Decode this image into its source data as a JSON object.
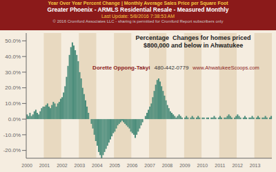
{
  "chart_data": {
    "type": "bar",
    "title": "Greater Phoenix - ARMLS Residential Resale - Measured Monthly",
    "subtitle": "Year Over Year Percent Change | Monthly Average Sales Price per Square Foot",
    "annotations": [
      "Last Update: 5/8/2016 7:38:53 AM",
      "© 2016 Cromford Associates LLC - sharing is permitted for Cromford Report subscribers only",
      "Percentage  Changes for homes priced",
      "$800,000 and below in Ahwatukee",
      "Dorette Oppong-Takyi",
      "480-442-0779",
      "www.AhwatukeeScoops.com"
    ],
    "categories": [
      "2000",
      null,
      null,
      null,
      null,
      null,
      null,
      null,
      null,
      null,
      null,
      null,
      "2001",
      null,
      null,
      null,
      null,
      null,
      null,
      null,
      null,
      null,
      null,
      null,
      "2002",
      null,
      null,
      null,
      null,
      null,
      null,
      null,
      null,
      null,
      null,
      null,
      "2003",
      null,
      null,
      null,
      null,
      null,
      null,
      null,
      null,
      null,
      null,
      null,
      "2004",
      null,
      null,
      null,
      null,
      null,
      null,
      null,
      null,
      null,
      null,
      null,
      "2005",
      null,
      null,
      null,
      null,
      null,
      null,
      null,
      null,
      null,
      null,
      null,
      "2006",
      null,
      null,
      null,
      null,
      null,
      null,
      null,
      null,
      null,
      null,
      null,
      "2007",
      null,
      null,
      null,
      null,
      null,
      null,
      null,
      null,
      null,
      null,
      null,
      "2008",
      null,
      null,
      null,
      null,
      null,
      null,
      null,
      null,
      null,
      null,
      null,
      "2009",
      null,
      null,
      null,
      null,
      null,
      null,
      null,
      null,
      null,
      null,
      null,
      "2010",
      null,
      null,
      null,
      null,
      null,
      null,
      null,
      null,
      null,
      null,
      null,
      "2011",
      null,
      null,
      null,
      null,
      null,
      null,
      null,
      null,
      null,
      null,
      null,
      "2012",
      null,
      null,
      null,
      null,
      null,
      null,
      null,
      null,
      null,
      null,
      null,
      "2013",
      null,
      null,
      null,
      null,
      null,
      null,
      null,
      null,
      null,
      null,
      null
    ],
    "values": [
      3,
      2,
      4,
      2,
      3,
      5,
      6,
      4,
      3,
      5,
      7,
      8,
      8,
      9,
      10,
      8,
      7,
      9,
      11,
      10,
      8,
      10,
      11,
      13,
      14,
      17,
      21,
      27,
      34,
      41,
      46,
      49,
      47,
      44,
      41,
      37,
      30,
      26,
      20,
      16,
      12,
      8,
      4,
      0,
      -3,
      -6,
      -10,
      -14,
      -17,
      -21,
      -23,
      -25,
      -23,
      -21,
      -19,
      -17,
      -15,
      -13,
      -11,
      -9,
      -8,
      -6,
      -4,
      -3,
      -2,
      -1,
      -2,
      -3,
      -4,
      -5,
      -6,
      -8,
      -9,
      -10,
      -12,
      -10,
      -8,
      -6,
      -4,
      -2,
      0,
      2,
      4,
      6,
      8,
      10,
      14,
      18,
      22,
      25,
      26,
      24,
      21,
      18,
      15,
      12,
      9,
      7,
      5,
      4,
      3,
      2,
      1,
      2,
      3,
      2,
      1,
      0,
      1,
      2,
      1,
      0,
      1,
      2,
      1,
      0,
      1,
      2,
      1,
      0,
      1,
      1,
      0,
      1,
      1,
      0,
      1,
      1,
      2,
      1,
      0,
      1,
      2,
      1,
      0,
      1,
      1,
      2,
      3,
      2,
      1,
      0,
      1,
      2,
      3,
      2,
      1,
      0,
      1,
      2,
      1,
      0,
      1,
      1,
      2,
      1,
      0,
      1,
      2,
      1,
      0,
      1,
      1,
      2,
      1,
      0,
      1,
      2
    ],
    "color": "#4a8c7a",
    "ylim": [
      -25,
      55
    ],
    "yticks": [
      {
        "value": -20,
        "label": "-20.0%"
      },
      {
        "value": -10,
        "label": "-10.0%"
      },
      {
        "value": 0,
        "label": "0.0%"
      },
      {
        "value": 10,
        "label": "10.0%"
      },
      {
        "value": 20,
        "label": "20.0%"
      },
      {
        "value": 30,
        "label": "30.0%"
      },
      {
        "value": 40,
        "label": "40.0%"
      },
      {
        "value": 50,
        "label": "50.0%"
      }
    ],
    "grid": false
  }
}
